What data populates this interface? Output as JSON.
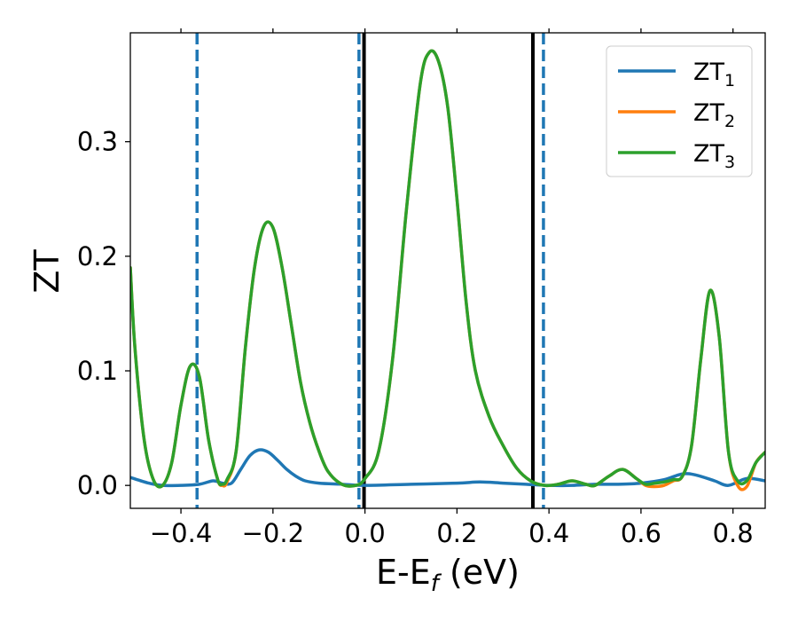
{
  "chart_data": {
    "type": "line",
    "xlabel": "E-E",
    "xlabel_sub": "f",
    "xlabel_unit": " (eV)",
    "ylabel": "ZT",
    "xlim": [
      -0.51,
      0.87
    ],
    "ylim": [
      -0.02,
      0.395
    ],
    "xticks": [
      -0.4,
      -0.2,
      0.0,
      0.2,
      0.4,
      0.6,
      0.8
    ],
    "xtick_labels": [
      "−0.4",
      "−0.2",
      "0.0",
      "0.2",
      "0.4",
      "0.6",
      "0.8"
    ],
    "yticks": [
      0.0,
      0.1,
      0.2,
      0.3
    ],
    "ytick_labels": [
      "0.0",
      "0.1",
      "0.2",
      "0.3"
    ],
    "grid": false,
    "legend_position": "top-right",
    "series": [
      {
        "name": "ZT",
        "sub": "1",
        "color": "#1f77b4",
        "x": [
          -0.51,
          -0.47,
          -0.44,
          -0.4,
          -0.36,
          -0.33,
          -0.31,
          -0.29,
          -0.27,
          -0.25,
          -0.23,
          -0.21,
          -0.19,
          -0.17,
          -0.15,
          -0.13,
          -0.1,
          -0.05,
          0.0,
          0.1,
          0.2,
          0.25,
          0.3,
          0.35,
          0.4,
          0.45,
          0.5,
          0.55,
          0.6,
          0.65,
          0.69,
          0.72,
          0.76,
          0.79,
          0.83,
          0.87
        ],
        "y": [
          0.007,
          0.002,
          0.0,
          0.0,
          0.001,
          0.004,
          0.002,
          0.002,
          0.014,
          0.026,
          0.031,
          0.029,
          0.022,
          0.014,
          0.008,
          0.004,
          0.002,
          0.001,
          0.0,
          0.001,
          0.002,
          0.003,
          0.002,
          0.001,
          0.0,
          0.0,
          0.001,
          0.001,
          0.002,
          0.005,
          0.01,
          0.009,
          0.004,
          0.0,
          0.006,
          0.004
        ]
      },
      {
        "name": "ZT",
        "sub": "2",
        "color": "#ff7f0e",
        "x": [
          -0.51,
          -0.5,
          -0.48,
          -0.46,
          -0.44,
          -0.42,
          -0.4,
          -0.38,
          -0.36,
          -0.34,
          -0.32,
          -0.31,
          -0.3,
          -0.28,
          -0.26,
          -0.24,
          -0.22,
          -0.2,
          -0.18,
          -0.16,
          -0.14,
          -0.12,
          -0.1,
          -0.08,
          -0.05,
          -0.02,
          0.0,
          0.03,
          0.06,
          0.09,
          0.12,
          0.14,
          0.16,
          0.18,
          0.2,
          0.22,
          0.24,
          0.27,
          0.3,
          0.33,
          0.36,
          0.39,
          0.42,
          0.45,
          0.48,
          0.5,
          0.53,
          0.56,
          0.59,
          0.61,
          0.63,
          0.65,
          0.67,
          0.69,
          0.71,
          0.73,
          0.75,
          0.77,
          0.79,
          0.81,
          0.83,
          0.85,
          0.87
        ],
        "y": [
          0.19,
          0.12,
          0.04,
          0.005,
          0.0,
          0.02,
          0.07,
          0.104,
          0.095,
          0.04,
          0.005,
          0.0,
          0.003,
          0.03,
          0.12,
          0.19,
          0.226,
          0.225,
          0.19,
          0.14,
          0.09,
          0.055,
          0.03,
          0.012,
          0.001,
          0.0,
          0.006,
          0.03,
          0.11,
          0.24,
          0.35,
          0.378,
          0.37,
          0.33,
          0.25,
          0.16,
          0.1,
          0.06,
          0.035,
          0.015,
          0.004,
          0.0,
          0.001,
          0.004,
          0.001,
          0.0,
          0.008,
          0.014,
          0.006,
          0.0,
          -0.001,
          0.0,
          0.004,
          0.008,
          0.035,
          0.11,
          0.17,
          0.13,
          0.03,
          0.0,
          -0.001,
          0.02,
          0.029
        ]
      },
      {
        "name": "ZT",
        "sub": "3",
        "color": "#2ca02c",
        "x": [
          -0.51,
          -0.5,
          -0.48,
          -0.46,
          -0.44,
          -0.42,
          -0.4,
          -0.38,
          -0.36,
          -0.34,
          -0.32,
          -0.31,
          -0.3,
          -0.28,
          -0.26,
          -0.24,
          -0.22,
          -0.2,
          -0.18,
          -0.16,
          -0.14,
          -0.12,
          -0.1,
          -0.08,
          -0.05,
          -0.02,
          0.0,
          0.03,
          0.06,
          0.09,
          0.12,
          0.14,
          0.16,
          0.18,
          0.2,
          0.22,
          0.24,
          0.27,
          0.3,
          0.33,
          0.36,
          0.39,
          0.42,
          0.45,
          0.48,
          0.5,
          0.53,
          0.56,
          0.59,
          0.61,
          0.63,
          0.65,
          0.67,
          0.69,
          0.71,
          0.73,
          0.75,
          0.77,
          0.79,
          0.81,
          0.83,
          0.85,
          0.87
        ],
        "y": [
          0.19,
          0.12,
          0.04,
          0.005,
          0.0,
          0.02,
          0.07,
          0.104,
          0.095,
          0.04,
          0.005,
          0.001,
          0.005,
          0.03,
          0.12,
          0.19,
          0.226,
          0.225,
          0.19,
          0.14,
          0.09,
          0.055,
          0.03,
          0.012,
          0.001,
          0.0,
          0.006,
          0.03,
          0.11,
          0.24,
          0.35,
          0.378,
          0.37,
          0.33,
          0.25,
          0.16,
          0.1,
          0.06,
          0.035,
          0.015,
          0.004,
          0.0,
          0.001,
          0.004,
          0.001,
          0.0,
          0.008,
          0.014,
          0.006,
          0.001,
          0.002,
          0.003,
          0.005,
          0.008,
          0.035,
          0.11,
          0.17,
          0.13,
          0.03,
          0.004,
          0.004,
          0.02,
          0.029
        ]
      }
    ],
    "vlines": [
      {
        "x": -0.365,
        "style": "dashed",
        "color": "#1f77b4"
      },
      {
        "x": -0.013,
        "style": "dashed",
        "color": "#1f77b4"
      },
      {
        "x": 0.388,
        "style": "dashed",
        "color": "#1f77b4"
      },
      {
        "x": -0.002,
        "style": "solid",
        "color": "#000000"
      },
      {
        "x": 0.365,
        "style": "solid",
        "color": "#000000"
      }
    ]
  }
}
